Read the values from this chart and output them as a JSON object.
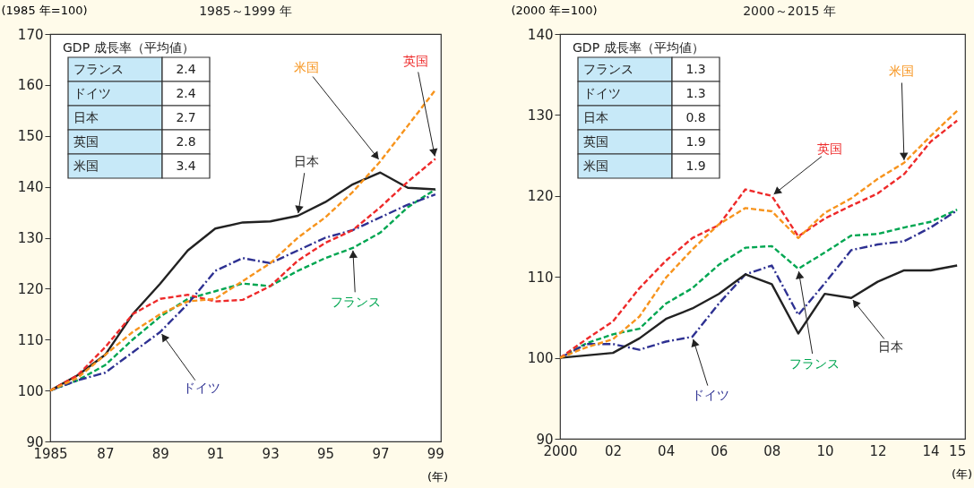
{
  "chart_data": [
    {
      "type": "line",
      "title": "1985～1999 年",
      "ylabel": "(1985 年=100)",
      "xlabel": "(年)",
      "x": [
        1985,
        1986,
        1987,
        1988,
        1989,
        1990,
        1991,
        1992,
        1993,
        1994,
        1995,
        1996,
        1997,
        1998,
        1999
      ],
      "xlim": [
        1985,
        1999.2
      ],
      "ylim": [
        90,
        170
      ],
      "xticks": [
        {
          "value": 1985,
          "label": "1985"
        },
        {
          "value": 1987,
          "label": "87"
        },
        {
          "value": 1989,
          "label": "89"
        },
        {
          "value": 1991,
          "label": "91"
        },
        {
          "value": 1993,
          "label": "93"
        },
        {
          "value": 1995,
          "label": "95"
        },
        {
          "value": 1997,
          "label": "97"
        },
        {
          "value": 1999,
          "label": "99"
        }
      ],
      "yticks": [
        90,
        100,
        110,
        120,
        130,
        140,
        150,
        160,
        170
      ],
      "series": [
        {
          "name": "フランス",
          "color": "#00a651",
          "line_style": "dashed",
          "values": [
            100,
            102,
            105,
            110,
            114.5,
            118,
            119.5,
            121,
            120.5,
            123.5,
            126,
            128,
            131,
            136,
            139.5
          ]
        },
        {
          "name": "ドイツ",
          "color": "#2e3192",
          "line_style": "dashdot",
          "values": [
            100,
            102,
            103.5,
            107.5,
            111.5,
            117,
            123.5,
            126,
            125,
            127.5,
            130,
            131.5,
            134,
            136.5,
            138.5
          ]
        },
        {
          "name": "日本",
          "color": "#222222",
          "line_style": "solid",
          "values": [
            100,
            103,
            107,
            115,
            121,
            127.5,
            131.8,
            133,
            133.2,
            134.3,
            137,
            140.5,
            142.8,
            139.8,
            139.5
          ]
        },
        {
          "name": "英国",
          "color": "#ee2a2a",
          "line_style": "dashed",
          "values": [
            100,
            103,
            108.5,
            115,
            118,
            118.8,
            117.5,
            117.8,
            120.5,
            125.5,
            129,
            131.5,
            136,
            141,
            145.5
          ]
        },
        {
          "name": "米国",
          "color": "#f7941d",
          "line_style": "dashed",
          "values": [
            100,
            102.5,
            107,
            111.5,
            115,
            117.5,
            118,
            121.5,
            125,
            130,
            134,
            139,
            145,
            152,
            159
          ]
        }
      ],
      "annotations": [
        "GDP 成長率（平均値）",
        "フランス",
        "2.4",
        "ドイツ",
        "2.4",
        "日本",
        "2.7",
        "英国",
        "2.8",
        "米国",
        "3.4"
      ]
    },
    {
      "type": "line",
      "title": "2000～2015 年",
      "ylabel": "(2000 年=100)",
      "xlabel": "(年)",
      "x": [
        2000,
        2001,
        2002,
        2003,
        2004,
        2005,
        2006,
        2007,
        2008,
        2009,
        2010,
        2011,
        2012,
        2013,
        2014,
        2015
      ],
      "xlim": [
        2000,
        2015.3
      ],
      "ylim": [
        90,
        140
      ],
      "xticks": [
        {
          "value": 2000,
          "label": "2000"
        },
        {
          "value": 2002,
          "label": "02"
        },
        {
          "value": 2004,
          "label": "04"
        },
        {
          "value": 2006,
          "label": "06"
        },
        {
          "value": 2008,
          "label": "08"
        },
        {
          "value": 2010,
          "label": "10"
        },
        {
          "value": 2012,
          "label": "12"
        },
        {
          "value": 2014,
          "label": "14"
        },
        {
          "value": 2015,
          "label": "15"
        }
      ],
      "yticks": [
        90,
        100,
        110,
        120,
        130,
        140
      ],
      "series": [
        {
          "name": "フランス",
          "color": "#00a651",
          "line_style": "dashed",
          "values": [
            100,
            101.8,
            102.9,
            103.6,
            106.7,
            108.6,
            111.5,
            113.6,
            113.8,
            111,
            113,
            115.1,
            115.3,
            116.1,
            116.8,
            118.3
          ]
        },
        {
          "name": "ドイツ",
          "color": "#2e3192",
          "line_style": "dashdot",
          "values": [
            100,
            101.7,
            101.7,
            101,
            102,
            102.6,
            106.7,
            110.3,
            111.4,
            105.3,
            109.2,
            113.3,
            114,
            114.4,
            116.1,
            118.2
          ]
        },
        {
          "name": "日本",
          "color": "#222222",
          "line_style": "solid",
          "values": [
            100,
            100.3,
            100.6,
            102.4,
            104.8,
            106.1,
            107.9,
            110.3,
            109.1,
            103,
            107.9,
            107.4,
            109.4,
            110.8,
            110.8,
            111.4
          ]
        },
        {
          "name": "英国",
          "color": "#ee2a2a",
          "line_style": "dashed",
          "values": [
            100,
            102.3,
            104.5,
            108.6,
            112,
            114.8,
            116.4,
            120.8,
            120,
            115,
            117.2,
            118.8,
            120.3,
            122.7,
            126.7,
            129.3
          ]
        },
        {
          "name": "米国",
          "color": "#f7941d",
          "line_style": "dashed",
          "values": [
            100,
            101.3,
            102.3,
            105.1,
            109.9,
            113.4,
            116.5,
            118.5,
            118.1,
            114.8,
            117.9,
            119.7,
            122.1,
            124.1,
            127.4,
            130.5
          ]
        }
      ],
      "annotations": [
        "GDP 成長率（平均値）",
        "フランス",
        "1.3",
        "ドイツ",
        "1.3",
        "日本",
        "0.8",
        "英国",
        "1.9",
        "米国",
        "1.9"
      ]
    }
  ]
}
